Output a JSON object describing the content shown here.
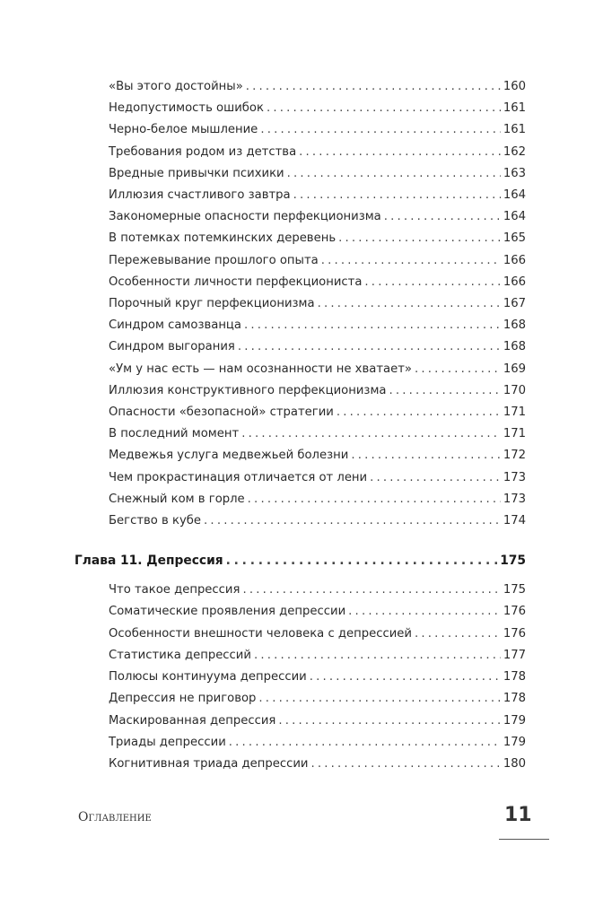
{
  "toc": {
    "section_items_a": [
      {
        "title": "«Вы этого достойны»",
        "page": "160"
      },
      {
        "title": "Недопустимость ошибок",
        "page": "161"
      },
      {
        "title": "Черно-белое мышление",
        "page": "161"
      },
      {
        "title": "Требования родом из детства",
        "page": "162"
      },
      {
        "title": "Вредные привычки психики",
        "page": "163"
      },
      {
        "title": "Иллюзия счастливого завтра",
        "page": "164"
      },
      {
        "title": "Закономерные опасности перфекционизма",
        "page": "164"
      },
      {
        "title": "В потемках потемкинских деревень",
        "page": "165"
      },
      {
        "title": "Пережевывание прошлого опыта",
        "page": "166"
      },
      {
        "title": "Особенности личности перфекциониста",
        "page": "166"
      },
      {
        "title": "Порочный круг перфекционизма",
        "page": "167"
      },
      {
        "title": "Синдром самозванца",
        "page": "168"
      },
      {
        "title": "Синдром выгорания",
        "page": "168"
      },
      {
        "title": "«Ум у нас есть — нам осознанности не хватает»",
        "page": "169"
      },
      {
        "title": "Иллюзия конструктивного перфекционизма",
        "page": "170"
      },
      {
        "title": "Опасности «безопасной» стратегии",
        "page": "171"
      },
      {
        "title": "В последний момент",
        "page": "171"
      },
      {
        "title": "Медвежья услуга медвежьей болезни",
        "page": "172"
      },
      {
        "title": "Чем прокрастинация отличается от лени",
        "page": "173"
      },
      {
        "title": "Снежный ком в горле",
        "page": "173"
      },
      {
        "title": "Бегство в кубе",
        "page": "174"
      }
    ],
    "chapter": {
      "title": "Глава 11. Депрессия",
      "page": "175"
    },
    "section_items_b": [
      {
        "title": "Что такое депрессия",
        "page": "175"
      },
      {
        "title": "Соматические проявления депрессии",
        "page": "176"
      },
      {
        "title": "Особенности внешности человека с депрессией",
        "page": "176"
      },
      {
        "title": "Статистика депрессий",
        "page": "177"
      },
      {
        "title": "Полюсы континуума депрессии",
        "page": "178"
      },
      {
        "title": "Депрессия  не приговор",
        "page": "178"
      },
      {
        "title": "Маскированная депрессия",
        "page": "179"
      },
      {
        "title": "Триады депрессии",
        "page": "179"
      },
      {
        "title": "Когнитивная триада депрессии",
        "page": "180"
      }
    ]
  },
  "footer": {
    "label": "Оглавление",
    "page_number": "11"
  }
}
